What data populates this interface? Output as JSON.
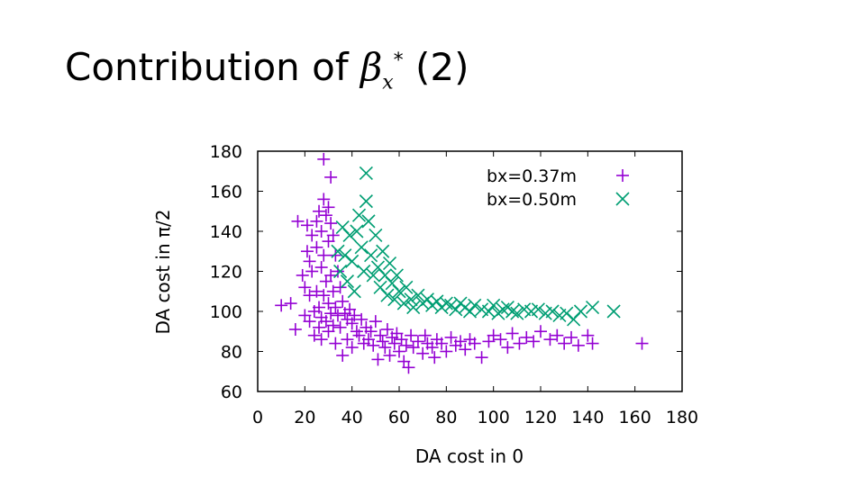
{
  "slide": {
    "title_text": "Contribution of ",
    "title_symbol": "β",
    "title_subscript": "x",
    "title_superscript": "*",
    "title_suffix": " (2)"
  },
  "chart_data": {
    "type": "scatter",
    "xlabel": "DA cost in 0",
    "ylabel": "DA cost in π/2",
    "xlim": [
      0,
      180
    ],
    "ylim": [
      60,
      180
    ],
    "xticks": [
      0,
      20,
      40,
      60,
      80,
      100,
      120,
      140,
      160,
      180
    ],
    "yticks": [
      60,
      80,
      100,
      120,
      140,
      160,
      180
    ],
    "legend_position": "top-right",
    "series": [
      {
        "name": "bx=0.37m",
        "marker": "plus",
        "color": "#9400d3",
        "points": [
          [
            10,
            103
          ],
          [
            14,
            104
          ],
          [
            16,
            91
          ],
          [
            17,
            145
          ],
          [
            19,
            118
          ],
          [
            20,
            112
          ],
          [
            20,
            98
          ],
          [
            21,
            143
          ],
          [
            21,
            130
          ],
          [
            22,
            125
          ],
          [
            22,
            108
          ],
          [
            22,
            95
          ],
          [
            23,
            138
          ],
          [
            23,
            120
          ],
          [
            24,
            100
          ],
          [
            24,
            88
          ],
          [
            25,
            145
          ],
          [
            25,
            132
          ],
          [
            25,
            110
          ],
          [
            26,
            150
          ],
          [
            26,
            102
          ],
          [
            26,
            92
          ],
          [
            27,
            140
          ],
          [
            27,
            122
          ],
          [
            27,
            97
          ],
          [
            27,
            86
          ],
          [
            28,
            176
          ],
          [
            28,
            156
          ],
          [
            28,
            128
          ],
          [
            28,
            108
          ],
          [
            29,
            148
          ],
          [
            29,
            115
          ],
          [
            29,
            95
          ],
          [
            30,
            152
          ],
          [
            30,
            135
          ],
          [
            30,
            104
          ],
          [
            30,
            90
          ],
          [
            31,
            167
          ],
          [
            31,
            144
          ],
          [
            31,
            118
          ],
          [
            31,
            99
          ],
          [
            32,
            138
          ],
          [
            32,
            110
          ],
          [
            32,
            93
          ],
          [
            33,
            128
          ],
          [
            33,
            102
          ],
          [
            33,
            84
          ],
          [
            34,
            120
          ],
          [
            34,
            98
          ],
          [
            35,
            112
          ],
          [
            35,
            92
          ],
          [
            36,
            105
          ],
          [
            36,
            78
          ],
          [
            37,
            99
          ],
          [
            38,
            96
          ],
          [
            38,
            86
          ],
          [
            39,
            101
          ],
          [
            40,
            94
          ],
          [
            40,
            82
          ],
          [
            41,
            98
          ],
          [
            42,
            90
          ],
          [
            43,
            88
          ],
          [
            44,
            96
          ],
          [
            45,
            84
          ],
          [
            46,
            92
          ],
          [
            47,
            86
          ],
          [
            48,
            90
          ],
          [
            49,
            83
          ],
          [
            50,
            95
          ],
          [
            51,
            76
          ],
          [
            52,
            88
          ],
          [
            53,
            85
          ],
          [
            54,
            82
          ],
          [
            55,
            91
          ],
          [
            56,
            78
          ],
          [
            57,
            87
          ],
          [
            58,
            84
          ],
          [
            59,
            89
          ],
          [
            60,
            80
          ],
          [
            61,
            86
          ],
          [
            62,
            75
          ],
          [
            63,
            83
          ],
          [
            64,
            72
          ],
          [
            65,
            88
          ],
          [
            66,
            82
          ],
          [
            68,
            85
          ],
          [
            70,
            79
          ],
          [
            71,
            88
          ],
          [
            72,
            84
          ],
          [
            74,
            82
          ],
          [
            75,
            77
          ],
          [
            76,
            86
          ],
          [
            78,
            84
          ],
          [
            80,
            80
          ],
          [
            82,
            87
          ],
          [
            84,
            83
          ],
          [
            86,
            85
          ],
          [
            88,
            81
          ],
          [
            90,
            86
          ],
          [
            92,
            84
          ],
          [
            95,
            77
          ],
          [
            98,
            85
          ],
          [
            100,
            88
          ],
          [
            103,
            86
          ],
          [
            106,
            82
          ],
          [
            108,
            89
          ],
          [
            111,
            84
          ],
          [
            114,
            87
          ],
          [
            117,
            85
          ],
          [
            120,
            90
          ],
          [
            124,
            86
          ],
          [
            127,
            88
          ],
          [
            130,
            84
          ],
          [
            133,
            87
          ],
          [
            136,
            83
          ],
          [
            140,
            88
          ],
          [
            142,
            84
          ],
          [
            163,
            84
          ]
        ]
      },
      {
        "name": "bx=0.50m",
        "marker": "x",
        "color": "#009e73",
        "points": [
          [
            34,
            130
          ],
          [
            35,
            120
          ],
          [
            36,
            142
          ],
          [
            37,
            128
          ],
          [
            38,
            115
          ],
          [
            39,
            138
          ],
          [
            40,
            125
          ],
          [
            41,
            110
          ],
          [
            42,
            140
          ],
          [
            43,
            148
          ],
          [
            44,
            132
          ],
          [
            45,
            120
          ],
          [
            46,
            155
          ],
          [
            46,
            169
          ],
          [
            47,
            145
          ],
          [
            48,
            128
          ],
          [
            49,
            118
          ],
          [
            50,
            138
          ],
          [
            51,
            122
          ],
          [
            52,
            112
          ],
          [
            53,
            130
          ],
          [
            54,
            118
          ],
          [
            55,
            108
          ],
          [
            56,
            124
          ],
          [
            57,
            114
          ],
          [
            58,
            106
          ],
          [
            59,
            118
          ],
          [
            60,
            110
          ],
          [
            62,
            104
          ],
          [
            63,
            112
          ],
          [
            65,
            106
          ],
          [
            66,
            102
          ],
          [
            68,
            108
          ],
          [
            70,
            104
          ],
          [
            72,
            106
          ],
          [
            74,
            103
          ],
          [
            76,
            105
          ],
          [
            78,
            102
          ],
          [
            80,
            104
          ],
          [
            82,
            103
          ],
          [
            84,
            101
          ],
          [
            86,
            104
          ],
          [
            88,
            102
          ],
          [
            90,
            100
          ],
          [
            92,
            103
          ],
          [
            95,
            101
          ],
          [
            98,
            100
          ],
          [
            100,
            103
          ],
          [
            102,
            99
          ],
          [
            104,
            101
          ],
          [
            106,
            102
          ],
          [
            108,
            100
          ],
          [
            110,
            99
          ],
          [
            113,
            101
          ],
          [
            116,
            100
          ],
          [
            119,
            101
          ],
          [
            122,
            99
          ],
          [
            125,
            100
          ],
          [
            128,
            98
          ],
          [
            131,
            99
          ],
          [
            134,
            96
          ],
          [
            137,
            100
          ],
          [
            142,
            102
          ],
          [
            151,
            100
          ]
        ]
      }
    ]
  }
}
